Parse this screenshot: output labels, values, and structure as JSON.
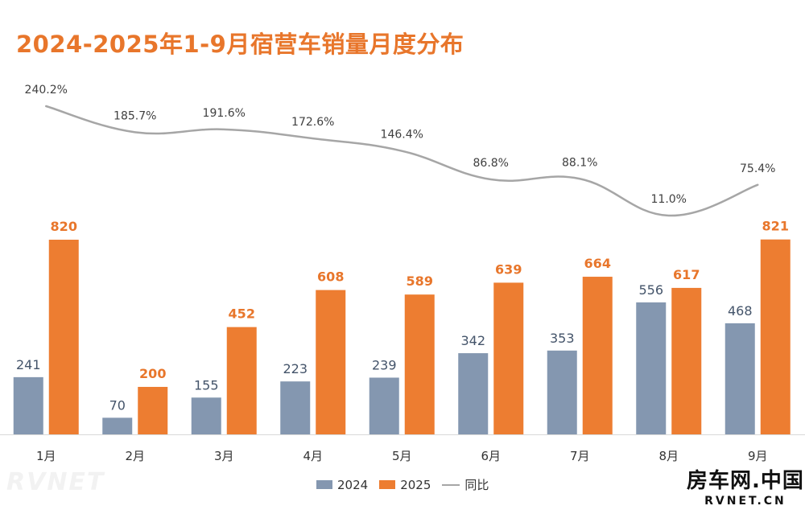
{
  "chart_data": {
    "type": "bar",
    "title": "2024-2025年1-9月宿营车销量月度分布",
    "categories": [
      "1月",
      "2月",
      "3月",
      "4月",
      "5月",
      "6月",
      "7月",
      "8月",
      "9月"
    ],
    "series": [
      {
        "name": "2024",
        "type": "bar",
        "color": "#8497B0",
        "values": [
          241,
          70,
          155,
          223,
          239,
          342,
          353,
          556,
          468
        ]
      },
      {
        "name": "2025",
        "type": "bar",
        "color": "#ED7D31",
        "values": [
          820,
          200,
          452,
          608,
          589,
          639,
          664,
          617,
          821
        ]
      },
      {
        "name": "同比",
        "type": "line",
        "color": "#A6A6A6",
        "values": [
          240.2,
          185.7,
          191.6,
          172.6,
          146.4,
          86.8,
          88.1,
          11.0,
          75.4
        ]
      }
    ],
    "yoy_labels": [
      "240.2%",
      "185.7%",
      "191.6%",
      "172.6%",
      "146.4%",
      "86.8%",
      "88.1%",
      "11.0%",
      "75.4%"
    ],
    "ylim": [
      0,
      850
    ],
    "yoy_range": [
      0,
      260
    ],
    "legend": [
      "2024",
      "2025",
      "同比"
    ],
    "legend_position": "bottom-center",
    "grid": false
  },
  "brand": {
    "main": "房车网.中国",
    "sub": "RVNET.CN"
  }
}
